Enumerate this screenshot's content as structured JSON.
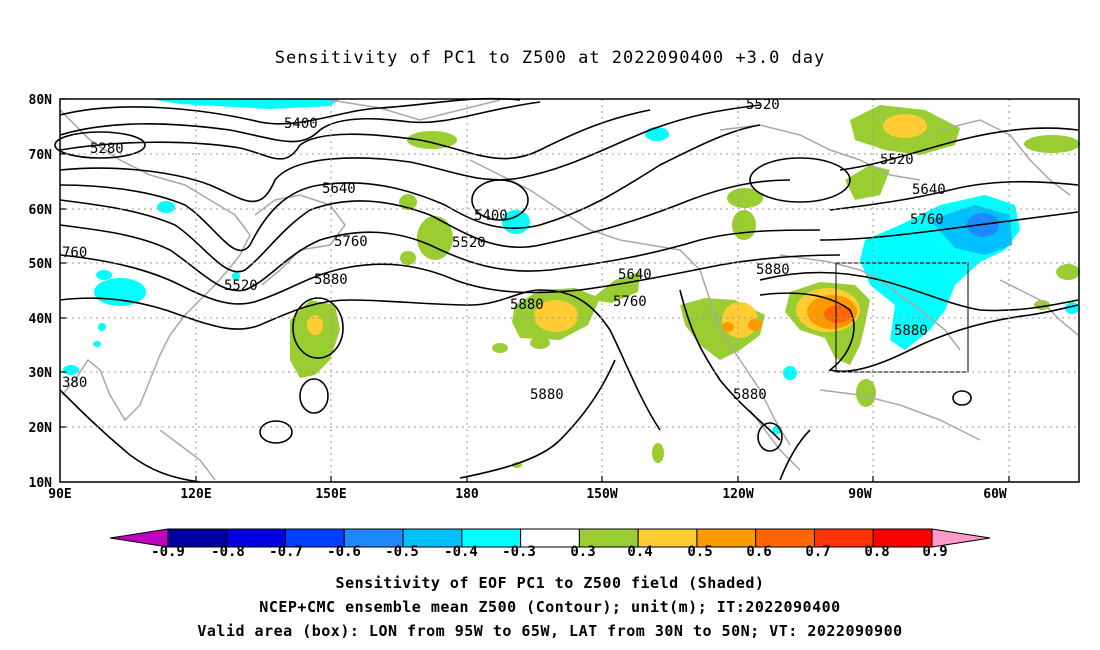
{
  "title": "Sensitivity of PC1 to Z500 at 2022090400 +3.0 day",
  "lat_labels": [
    "80N",
    "70N",
    "60N",
    "50N",
    "40N",
    "30N",
    "20N",
    "10N"
  ],
  "lon_labels": [
    "90E",
    "120E",
    "150E",
    "180",
    "150W",
    "120W",
    "90W",
    "60W"
  ],
  "contour_labels": [
    "5280",
    "5400",
    "5520",
    "5640",
    "5760",
    "5880",
    "5400",
    "5520",
    "5640",
    "5760",
    "5880",
    "5520",
    "5520",
    "5640",
    "5760",
    "5880",
    "5880",
    "5880",
    "5880",
    "5880",
    "760",
    "380"
  ],
  "colorbar": {
    "labels": [
      "-0.9",
      "-0.8",
      "-0.7",
      "-0.6",
      "-0.5",
      "-0.4",
      "-0.3",
      "0.3",
      "0.4",
      "0.5",
      "0.6",
      "0.7",
      "0.8",
      "0.9"
    ],
    "colors": [
      "#0000a0",
      "#0000e0",
      "#0040ff",
      "#1e88ff",
      "#00c0ff",
      "#00ffff",
      "#ffffff",
      "#9acd32",
      "#ffcc33",
      "#ff9900",
      "#ff6600",
      "#ff3300",
      "#ff0000"
    ],
    "low_end_color": "#c000c0",
    "high_end_color": "#ff99cc"
  },
  "captions": [
    "Sensitivity of EOF PC1 to Z500 field (Shaded)",
    "NCEP+CMC ensemble mean Z500 (Contour); unit(m); IT:2022090400",
    "Valid area (box): LON from 95W to 65W, LAT from 30N to 50N; VT: 2022090900"
  ],
  "valid_box": {
    "lon_w": -95,
    "lon_e": -65,
    "lat_s": 30,
    "lat_n": 50
  }
}
